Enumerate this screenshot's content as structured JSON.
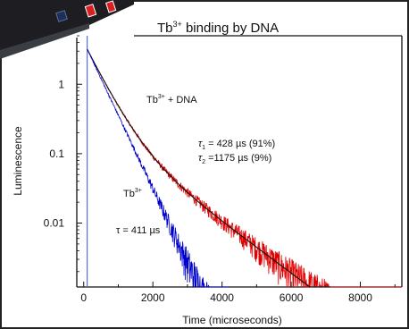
{
  "chart_data": {
    "type": "line",
    "title": "Tb³⁺ binding by DNA",
    "xlabel": "Time (microseconds)",
    "ylabel": "Luminescence",
    "y_scale": "log",
    "xlim": [
      -200,
      9200
    ],
    "ylim": [
      0.0012,
      5
    ],
    "x_ticks": [
      0,
      2000,
      4000,
      6000,
      8000
    ],
    "x_tick_labels": [
      "0",
      "2000",
      "4000",
      "6000",
      "8000"
    ],
    "y_ticks": [
      1,
      0.1,
      0.01
    ],
    "y_tick_labels": [
      "1",
      "0.1",
      "0.01"
    ],
    "excitation_marker_x": 100,
    "grid": false,
    "series": [
      {
        "name": "Tb³⁺",
        "color": "#0000cc",
        "tau_us": 411,
        "decay_end_x": 4200
      },
      {
        "name": "Tb³⁺ + DNA",
        "color": "#dd0000",
        "fit_color": "#111111",
        "components": [
          {
            "tau_us": 428,
            "fraction_pct": 91
          },
          {
            "tau_us": 1175,
            "fraction_pct": 9
          }
        ]
      }
    ],
    "annotations": {
      "tb_label": "Tb",
      "tb_sup": "3+",
      "tb_dna_label": "Tb",
      "tb_dna_sup": "3+",
      "tb_dna_suffix": " + DNA",
      "tau_single": "τ = 411 µs",
      "tau1_sym": "τ",
      "tau1_sub": "1",
      "tau1_text": " = 428  µs (91%)",
      "tau2_sym": "τ",
      "tau2_sub": "2",
      "tau2_text": " =1175 µs (9%)"
    },
    "title_parts": {
      "main": "Tb",
      "sup": "3+",
      "rest": " binding by DNA"
    }
  }
}
